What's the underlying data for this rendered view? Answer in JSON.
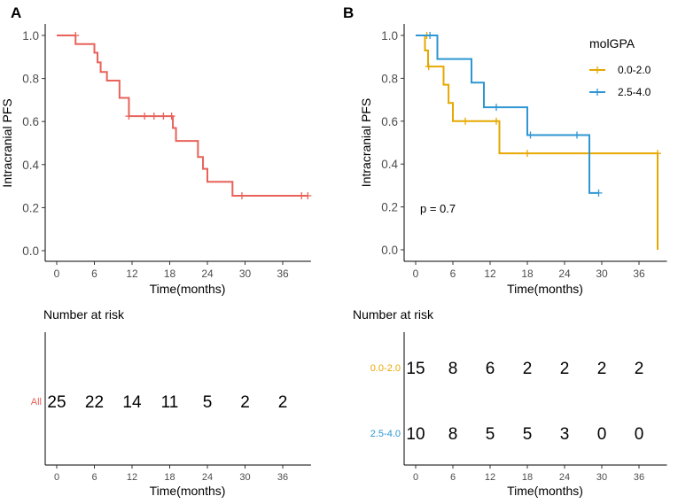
{
  "colors": {
    "all": "#E8625A",
    "low": "#E6A800",
    "high": "#2E96D2",
    "axis": "#000000",
    "tick_text": "#4d4d4d"
  },
  "chart_data": [
    {
      "type": "line",
      "subtype": "kaplan-meier",
      "panel": "A",
      "xlabel": "Time(months)",
      "ylabel": "Intracranial PFS",
      "xticks": [
        0,
        6,
        12,
        18,
        24,
        30,
        36
      ],
      "yticks": [
        0.0,
        0.2,
        0.4,
        0.6,
        0.8,
        1.0
      ],
      "ytick_labels": [
        "0.0",
        "0.2",
        "0.4",
        "0.6",
        "0.8",
        "1.0"
      ],
      "xlim": [
        -1.8,
        40.5
      ],
      "ylim": [
        -0.05,
        1.05
      ],
      "series": [
        {
          "name": "All",
          "color_key": "all",
          "steps": [
            [
              0,
              1.0
            ],
            [
              3,
              0.96
            ],
            [
              6,
              0.92
            ],
            [
              6.5,
              0.875
            ],
            [
              7,
              0.83
            ],
            [
              8,
              0.79
            ],
            [
              10,
              0.71
            ],
            [
              11.5,
              0.625
            ],
            [
              18.5,
              0.57
            ],
            [
              19,
              0.51
            ],
            [
              22.5,
              0.435
            ],
            [
              23.3,
              0.38
            ],
            [
              24,
              0.32
            ],
            [
              28,
              0.255
            ],
            [
              40,
              0.255
            ]
          ],
          "censors": [
            [
              3,
              1.0
            ],
            [
              11.5,
              0.625
            ],
            [
              14,
              0.625
            ],
            [
              15.5,
              0.625
            ],
            [
              17,
              0.625
            ],
            [
              18.3,
              0.625
            ],
            [
              29.5,
              0.255
            ],
            [
              39,
              0.255
            ],
            [
              40,
              0.255
            ]
          ]
        }
      ]
    },
    {
      "type": "line",
      "subtype": "kaplan-meier",
      "panel": "B",
      "xlabel": "Time(months)",
      "ylabel": "Intracranial PFS",
      "xticks": [
        0,
        6,
        12,
        18,
        24,
        30,
        36
      ],
      "yticks": [
        0.0,
        0.2,
        0.4,
        0.6,
        0.8,
        1.0
      ],
      "ytick_labels": [
        "0.0",
        "0.2",
        "0.4",
        "0.6",
        "0.8",
        "1.0"
      ],
      "xlim": [
        -1.8,
        40.5
      ],
      "ylim": [
        -0.05,
        1.05
      ],
      "legend_title": "molGPA",
      "legend_position": "top-right",
      "annotation": "p = 0.7",
      "series": [
        {
          "name": "0.0-2.0",
          "color_key": "low",
          "steps": [
            [
              0,
              1.0
            ],
            [
              1.5,
              0.93
            ],
            [
              2,
              0.855
            ],
            [
              4.5,
              0.77
            ],
            [
              5.3,
              0.685
            ],
            [
              6,
              0.6
            ],
            [
              13.5,
              0.45
            ],
            [
              39,
              0.0
            ]
          ],
          "censors": [
            [
              1.8,
              1.0
            ],
            [
              2.1,
              0.855
            ],
            [
              8,
              0.6
            ],
            [
              13,
              0.6
            ],
            [
              18,
              0.45
            ],
            [
              39,
              0.45
            ]
          ]
        },
        {
          "name": "2.5-4.0",
          "color_key": "high",
          "steps": [
            [
              0,
              1.0
            ],
            [
              3.5,
              0.89
            ],
            [
              9,
              0.78
            ],
            [
              11,
              0.665
            ],
            [
              18,
              0.535
            ],
            [
              28,
              0.265
            ],
            [
              29.5,
              0.265
            ]
          ],
          "censors": [
            [
              2.3,
              1.0
            ],
            [
              13,
              0.665
            ],
            [
              18.5,
              0.535
            ],
            [
              26,
              0.535
            ],
            [
              29.5,
              0.265
            ]
          ]
        }
      ]
    }
  ],
  "risk_tables": [
    {
      "panel": "A",
      "title": "Number at risk",
      "xlabel": "Time(months)",
      "xticks": [
        0,
        6,
        12,
        18,
        24,
        30,
        36
      ],
      "rows": [
        {
          "label": "All",
          "color_key": "all",
          "counts": [
            "25",
            "22",
            "14",
            "11",
            "5",
            "2",
            "2"
          ]
        }
      ]
    },
    {
      "panel": "B",
      "title": "Number at risk",
      "xlabel": "Time(months)",
      "xticks": [
        0,
        6,
        12,
        18,
        24,
        30,
        36
      ],
      "rows": [
        {
          "label": "0.0-2.0",
          "color_key": "low",
          "counts": [
            "15",
            "8",
            "6",
            "2",
            "2",
            "2",
            "2"
          ]
        },
        {
          "label": "2.5-4.0",
          "color_key": "high",
          "counts": [
            "10",
            "8",
            "5",
            "5",
            "3",
            "0",
            "0"
          ]
        }
      ]
    }
  ]
}
